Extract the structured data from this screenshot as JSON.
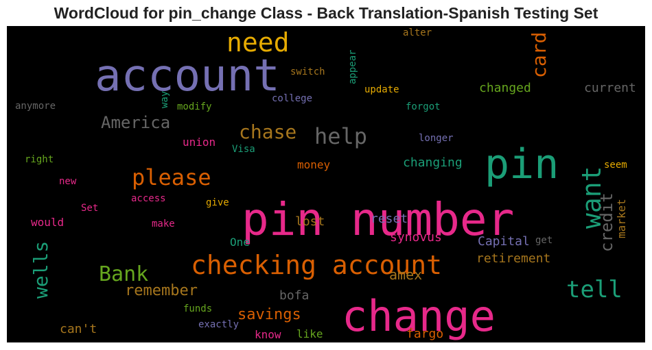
{
  "chart_data": {
    "type": "wordcloud",
    "title": "WordCloud for pin_change Class - Back Translation-Spanish Testing Set",
    "background": "#000000",
    "words": [
      {
        "text": "pin number",
        "color": "#e7298a"
      },
      {
        "text": "change",
        "color": "#e7298a"
      },
      {
        "text": "account",
        "color": "#7570b3"
      },
      {
        "text": "pin",
        "color": "#1b9e77"
      },
      {
        "text": "checking account",
        "color": "#d95f02"
      },
      {
        "text": "help",
        "color": "#666666"
      },
      {
        "text": "need",
        "color": "#e6ab02"
      },
      {
        "text": "tell",
        "color": "#1b9e77"
      },
      {
        "text": "want",
        "color": "#1b9e77"
      },
      {
        "text": "card",
        "color": "#d95f02"
      },
      {
        "text": "please",
        "color": "#d95f02"
      },
      {
        "text": "chase",
        "color": "#a6761d"
      },
      {
        "text": "Bank",
        "color": "#66a61e"
      },
      {
        "text": "America",
        "color": "#666666"
      },
      {
        "text": "wells",
        "color": "#1b9e77"
      },
      {
        "text": "credit",
        "color": "#666666"
      },
      {
        "text": "remember",
        "color": "#a6761d"
      },
      {
        "text": "savings",
        "color": "#d95f02"
      },
      {
        "text": "amex",
        "color": "#a6761d"
      },
      {
        "text": "changed",
        "color": "#66a61e"
      },
      {
        "text": "changing",
        "color": "#1b9e77"
      },
      {
        "text": "current",
        "color": "#666666"
      },
      {
        "text": "Capital",
        "color": "#7570b3"
      },
      {
        "text": "retirement",
        "color": "#a6761d"
      },
      {
        "text": "fargo",
        "color": "#d95f02"
      },
      {
        "text": "market",
        "color": "#a6761d"
      },
      {
        "text": "synovus",
        "color": "#e7298a"
      },
      {
        "text": "reset",
        "color": "#7570b3"
      },
      {
        "text": "lost",
        "color": "#a6761d"
      },
      {
        "text": "money",
        "color": "#d95f02"
      },
      {
        "text": "would",
        "color": "#e7298a"
      },
      {
        "text": "can't",
        "color": "#a6761d"
      },
      {
        "text": "bofa",
        "color": "#666666"
      },
      {
        "text": "know",
        "color": "#e7298a"
      },
      {
        "text": "like",
        "color": "#66a61e"
      },
      {
        "text": "One",
        "color": "#1b9e77"
      },
      {
        "text": "union",
        "color": "#e7298a"
      },
      {
        "text": "update",
        "color": "#e6ab02"
      },
      {
        "text": "switch",
        "color": "#a6761d"
      },
      {
        "text": "alter",
        "color": "#a6761d"
      },
      {
        "text": "appear",
        "color": "#1b9e77"
      },
      {
        "text": "college",
        "color": "#7570b3"
      },
      {
        "text": "forgot",
        "color": "#1b9e77"
      },
      {
        "text": "longer",
        "color": "#7570b3"
      },
      {
        "text": "seem",
        "color": "#e6ab02"
      },
      {
        "text": "modify",
        "color": "#66a61e"
      },
      {
        "text": "anymore",
        "color": "#666666"
      },
      {
        "text": "way",
        "color": "#1b9e77"
      },
      {
        "text": "Visa",
        "color": "#1b9e77"
      },
      {
        "text": "right",
        "color": "#66a61e"
      },
      {
        "text": "new",
        "color": "#e7298a"
      },
      {
        "text": "Set",
        "color": "#e7298a"
      },
      {
        "text": "access",
        "color": "#e7298a"
      },
      {
        "text": "give",
        "color": "#e6ab02"
      },
      {
        "text": "make",
        "color": "#e7298a"
      },
      {
        "text": "funds",
        "color": "#66a61e"
      },
      {
        "text": "exactly",
        "color": "#7570b3"
      },
      {
        "text": "get",
        "color": "#666666"
      }
    ]
  }
}
